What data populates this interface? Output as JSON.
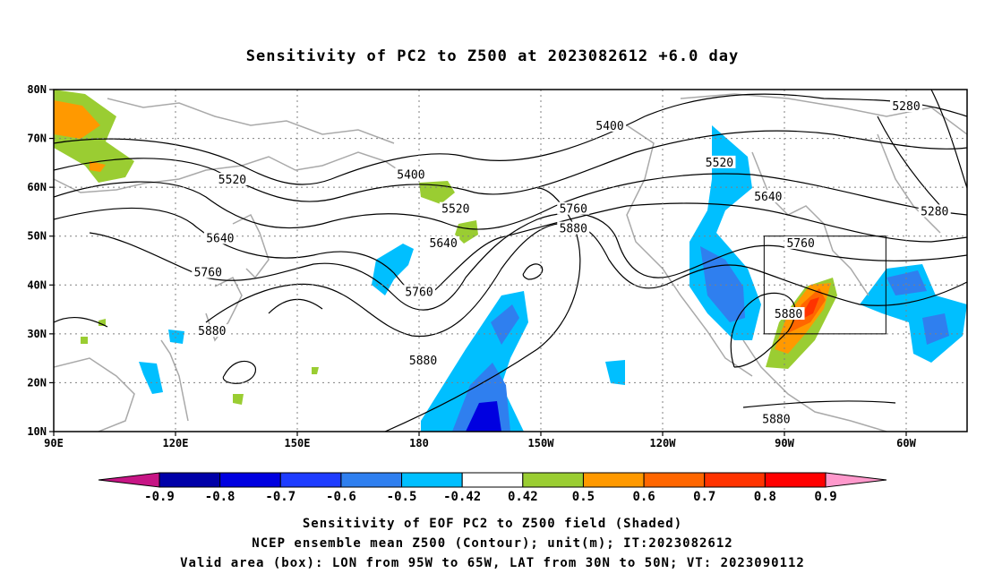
{
  "title": "Sensitivity of PC2 to Z500 at 2023082612 +6.0 day",
  "map": {
    "lat_ticks": [
      {
        "value": 80,
        "label": "80N"
      },
      {
        "value": 70,
        "label": "70N"
      },
      {
        "value": 60,
        "label": "60N"
      },
      {
        "value": 50,
        "label": "50N"
      },
      {
        "value": 40,
        "label": "40N"
      },
      {
        "value": 30,
        "label": "30N"
      },
      {
        "value": 20,
        "label": "20N"
      },
      {
        "value": 10,
        "label": "10N"
      }
    ],
    "lon_ticks": [
      {
        "value": 90,
        "label": "90E"
      },
      {
        "value": 120,
        "label": "120E"
      },
      {
        "value": 150,
        "label": "150E"
      },
      {
        "value": 180,
        "label": "180"
      },
      {
        "value": 210,
        "label": "150W"
      },
      {
        "value": 240,
        "label": "120W"
      },
      {
        "value": 270,
        "label": "90W"
      },
      {
        "value": 300,
        "label": "60W"
      }
    ],
    "lon_range": [
      90,
      315
    ],
    "lat_range": [
      10,
      80
    ],
    "grid": true,
    "contour_labels": [
      {
        "text": "5280",
        "lon": 300,
        "lat": 76.5
      },
      {
        "text": "5280",
        "lon": 307,
        "lat": 55
      },
      {
        "text": "5400",
        "lon": 227,
        "lat": 72.5
      },
      {
        "text": "5400",
        "lon": 178,
        "lat": 62.5
      },
      {
        "text": "5520",
        "lon": 134,
        "lat": 61.5
      },
      {
        "text": "5520",
        "lon": 189,
        "lat": 55.5
      },
      {
        "text": "5520",
        "lon": 254,
        "lat": 65
      },
      {
        "text": "5640",
        "lon": 131,
        "lat": 49.5
      },
      {
        "text": "5640",
        "lon": 186,
        "lat": 48.5
      },
      {
        "text": "5640",
        "lon": 266,
        "lat": 58
      },
      {
        "text": "5760",
        "lon": 128,
        "lat": 42.5
      },
      {
        "text": "5760",
        "lon": 180,
        "lat": 38.5
      },
      {
        "text": "5760",
        "lon": 218,
        "lat": 55.5
      },
      {
        "text": "5760",
        "lon": 274,
        "lat": 48.5
      },
      {
        "text": "5880",
        "lon": 129,
        "lat": 30.5
      },
      {
        "text": "5880",
        "lon": 181,
        "lat": 24.5
      },
      {
        "text": "5880",
        "lon": 218,
        "lat": 51.5
      },
      {
        "text": "5880",
        "lon": 271,
        "lat": 34
      },
      {
        "text": "5880",
        "lon": 268,
        "lat": 12.5
      }
    ],
    "valid_box": {
      "lon_min": 265,
      "lon_max": 295,
      "lat_min": 30,
      "lat_max": 50
    }
  },
  "colorbar": {
    "labels": [
      "-0.9",
      "-0.8",
      "-0.7",
      "-0.6",
      "-0.5",
      "-0.42",
      "0.42",
      "0.5",
      "0.6",
      "0.7",
      "0.8",
      "0.9"
    ],
    "colors": [
      "#c71585",
      "#0000a8",
      "#0000e0",
      "#1e3cff",
      "#2f7fef",
      "#00bfff",
      "#ffffff",
      "#9acd32",
      "#ff9900",
      "#ff6600",
      "#ff3300",
      "#ff0000",
      "#ff99cc"
    ]
  },
  "captions": {
    "line1": "Sensitivity of EOF PC2 to Z500 field (Shaded)",
    "line2": "NCEP ensemble mean Z500 (Contour); unit(m); IT:2023082612",
    "line3": "Valid area (box): LON from 95W to 65W, LAT from 30N to 50N; VT: 2023090112"
  }
}
